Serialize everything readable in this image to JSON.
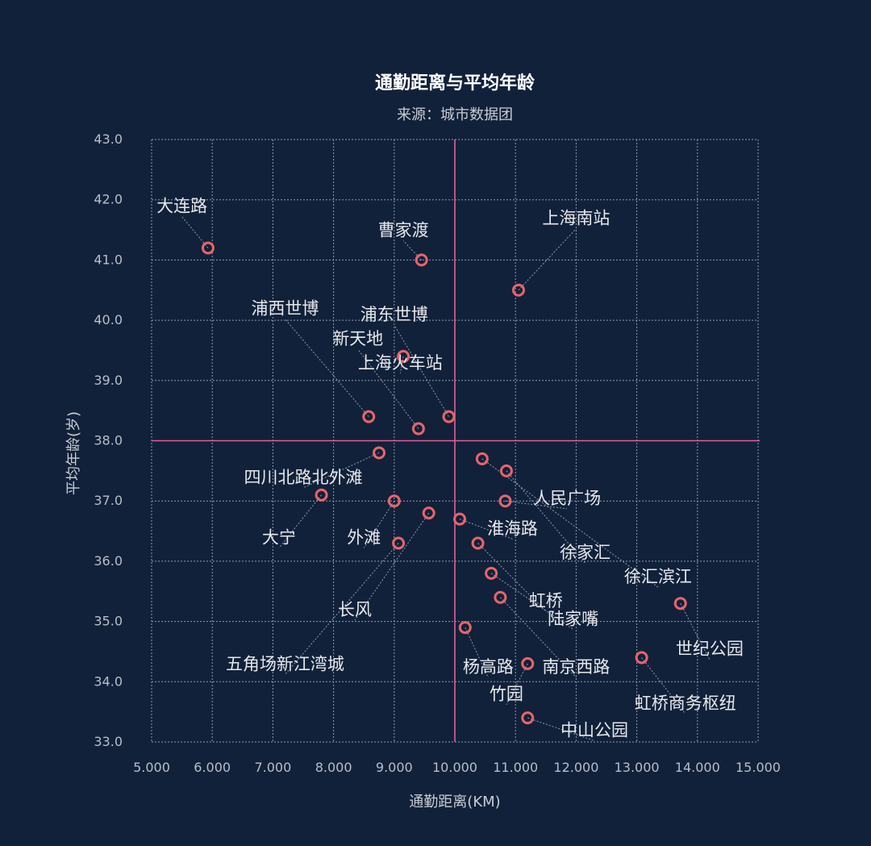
{
  "colors": {
    "background": "#11213a",
    "grid": "#8f9bb0",
    "reference": "#e0609a",
    "marker": "#e8646c",
    "leader": "#8f9bb0",
    "text": "#e6e8ec"
  },
  "chart_data": {
    "type": "scatter",
    "title": "通勤距离与平均年龄",
    "subtitle": "来源：城市数据团",
    "xlabel": "通勤距离(KM)",
    "ylabel": "平均年龄(岁)",
    "xlim": [
      5,
      15
    ],
    "ylim": [
      33,
      43
    ],
    "xticks": [
      "5.000",
      "6.000",
      "7.000",
      "8.000",
      "9.000",
      "10.000",
      "11.000",
      "12.000",
      "13.000",
      "14.000",
      "15.000"
    ],
    "yticks": [
      "33.0",
      "34.0",
      "35.0",
      "36.0",
      "37.0",
      "38.0",
      "39.0",
      "40.0",
      "41.0",
      "42.0",
      "43.0"
    ],
    "grid": true,
    "reference_lines": {
      "x": 10.0,
      "y": 38.0
    },
    "points": [
      {
        "label": "大连路",
        "x": 5.93,
        "y": 41.2,
        "lx": 5.5,
        "ly": 41.8
      },
      {
        "label": "曹家渡",
        "x": 9.45,
        "y": 41.0,
        "lx": 9.15,
        "ly": 41.4
      },
      {
        "label": "上海南站",
        "x": 11.05,
        "y": 40.5,
        "lx": 12.0,
        "ly": 41.6
      },
      {
        "label": "浦西世博",
        "x": 8.58,
        "y": 38.4,
        "lx": 7.2,
        "ly": 40.1
      },
      {
        "label": "浦东世博",
        "x": 9.9,
        "y": 38.4,
        "lx": 9.0,
        "ly": 40.0
      },
      {
        "label": "新天地",
        "x": 9.4,
        "y": 38.2,
        "lx": 8.4,
        "ly": 39.6
      },
      {
        "label": "上海火车站",
        "x": 9.15,
        "y": 39.4,
        "lx": 9.1,
        "ly": 39.2
      },
      {
        "label": "四川北路北外滩",
        "x": 8.75,
        "y": 37.8,
        "lx": 7.5,
        "ly": 37.3
      },
      {
        "label": "大宁",
        "x": 7.8,
        "y": 37.1,
        "lx": 7.1,
        "ly": 36.3
      },
      {
        "label": "外滩",
        "x": 9.0,
        "y": 37.0,
        "lx": 8.5,
        "ly": 36.3
      },
      {
        "label": "长风",
        "x": 9.57,
        "y": 36.8,
        "lx": 8.35,
        "ly": 35.1
      },
      {
        "label": "五角场新江湾城",
        "x": 9.07,
        "y": 36.3,
        "lx": 7.2,
        "ly": 34.2
      },
      {
        "label": "人民广场",
        "x": 10.83,
        "y": 37.0,
        "lx": 11.85,
        "ly": 36.95
      },
      {
        "label": "淮海路",
        "x": 10.08,
        "y": 36.7,
        "lx": 10.95,
        "ly": 36.45
      },
      {
        "label": "徐家汇",
        "x": 10.85,
        "y": 37.5,
        "lx": 12.15,
        "ly": 36.05
      },
      {
        "label": "徐汇滨江",
        "x": 10.45,
        "y": 37.7,
        "lx": 13.35,
        "ly": 35.65
      },
      {
        "label": "虹桥",
        "x": 10.38,
        "y": 36.3,
        "lx": 11.5,
        "ly": 35.25
      },
      {
        "label": "陆家嘴",
        "x": 10.6,
        "y": 35.8,
        "lx": 11.95,
        "ly": 34.95
      },
      {
        "label": "世纪公园",
        "x": 13.72,
        "y": 35.3,
        "lx": 14.2,
        "ly": 34.45
      },
      {
        "label": "杨高路",
        "x": 10.17,
        "y": 34.9,
        "lx": 10.55,
        "ly": 34.15
      },
      {
        "label": "南京西路",
        "x": 10.75,
        "y": 35.4,
        "lx": 12.0,
        "ly": 34.15
      },
      {
        "label": "竹园",
        "x": 11.2,
        "y": 34.3,
        "lx": 10.85,
        "ly": 33.7
      },
      {
        "label": "虹桥商务枢纽",
        "x": 13.08,
        "y": 34.4,
        "lx": 13.8,
        "ly": 33.55
      },
      {
        "label": "中山公园",
        "x": 11.2,
        "y": 33.4,
        "lx": 12.3,
        "ly": 33.1
      }
    ]
  }
}
